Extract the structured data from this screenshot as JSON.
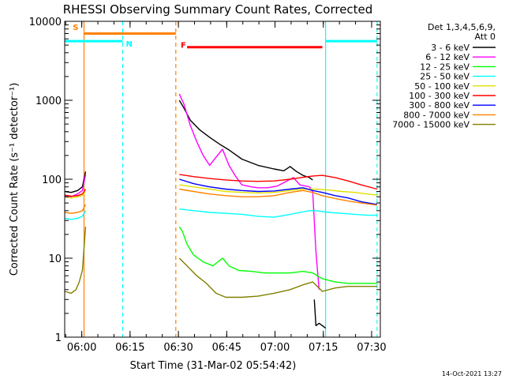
{
  "chart_data": {
    "type": "line",
    "title": "RHESSI Observing Summary Count Rates, Corrected",
    "xlabel": "Start Time (31-Mar-02 05:54:42)",
    "ylabel": "Corrected Count Rate (s⁻¹ detector⁻¹)",
    "x_unit": "minutes since 05:54:42",
    "xlim": [
      0,
      98
    ],
    "ylim": [
      1,
      10000
    ],
    "y_scale": "log",
    "x_ticks": [
      {
        "label": "06:00",
        "value": 5.3
      },
      {
        "label": "06:15",
        "value": 20.3
      },
      {
        "label": "06:30",
        "value": 35.3
      },
      {
        "label": "06:45",
        "value": 50.3
      },
      {
        "label": "07:00",
        "value": 65.3
      },
      {
        "label": "07:15",
        "value": 80.3
      },
      {
        "label": "07:30",
        "value": 95.3
      }
    ],
    "y_ticks": [
      {
        "label": "1",
        "value": 1
      },
      {
        "label": "10",
        "value": 10
      },
      {
        "label": "100",
        "value": 100
      },
      {
        "label": "1000",
        "value": 1000
      },
      {
        "label": "10000",
        "value": 10000
      }
    ],
    "legend_header": [
      "Det 1,3,4,5,6,9,",
      "Att 0"
    ],
    "legend_position": "right",
    "series": [
      {
        "name": "3 - 6 keV",
        "color": "#000000",
        "segments": [
          [
            [
              0,
              70
            ],
            [
              2,
              68
            ],
            [
              4,
              72
            ],
            [
              5.5,
              80
            ],
            [
              6.5,
              125
            ]
          ],
          [
            [
              35.6,
              1000
            ],
            [
              37,
              800
            ],
            [
              39,
              560
            ],
            [
              42,
              420
            ],
            [
              45,
              340
            ],
            [
              48,
              280
            ],
            [
              51,
              235
            ],
            [
              55,
              180
            ],
            [
              60,
              150
            ],
            [
              65,
              135
            ],
            [
              68,
              128
            ],
            [
              70,
              145
            ],
            [
              72,
              125
            ],
            [
              74,
              112
            ],
            [
              76,
              105
            ],
            [
              77,
              98
            ]
          ],
          [
            [
              77.5,
              3
            ],
            [
              78,
              1.4
            ],
            [
              79,
              1.5
            ],
            [
              80,
              1.4
            ],
            [
              81,
              1.3
            ]
          ]
        ]
      },
      {
        "name": "6 - 12 keV",
        "color": "#ff00ff",
        "segments": [
          [
            [
              0,
              62
            ],
            [
              2,
              60
            ],
            [
              4,
              65
            ],
            [
              5.5,
              72
            ],
            [
              6.5,
              115
            ]
          ],
          [
            [
              35.6,
              1200
            ],
            [
              37,
              900
            ],
            [
              39,
              480
            ],
            [
              41,
              300
            ],
            [
              43,
              200
            ],
            [
              45,
              150
            ],
            [
              47,
              190
            ],
            [
              49,
              240
            ],
            [
              51,
              150
            ],
            [
              53,
              110
            ],
            [
              55,
              85
            ],
            [
              58,
              80
            ],
            [
              60,
              78
            ],
            [
              63,
              78
            ],
            [
              66,
              82
            ],
            [
              69,
              95
            ],
            [
              71,
              105
            ],
            [
              73,
              85
            ],
            [
              76,
              80
            ],
            [
              77,
              70
            ],
            [
              78,
              12
            ],
            [
              79,
              4
            ]
          ]
        ]
      },
      {
        "name": "12 - 25 keV",
        "color": "#00ff00",
        "segments": [
          [
            [
              35.6,
              25
            ],
            [
              36.5,
              22
            ],
            [
              38,
              15
            ],
            [
              40,
              11
            ],
            [
              43,
              9
            ],
            [
              46,
              8
            ],
            [
              49,
              10
            ],
            [
              51,
              8
            ],
            [
              54,
              7
            ],
            [
              58,
              6.8
            ],
            [
              62,
              6.5
            ],
            [
              66,
              6.5
            ],
            [
              70,
              6.5
            ],
            [
              74,
              6.8
            ],
            [
              77,
              6.5
            ],
            [
              80,
              5.5
            ],
            [
              84,
              5
            ],
            [
              88,
              4.8
            ],
            [
              92,
              4.8
            ],
            [
              97,
              4.8
            ]
          ]
        ]
      },
      {
        "name": "25 - 50 keV",
        "color": "#00ffff",
        "segments": [
          [
            [
              0,
              32
            ],
            [
              2,
              31
            ],
            [
              4,
              32
            ],
            [
              5.5,
              34
            ],
            [
              6.5,
              40
            ]
          ],
          [
            [
              35.6,
              42
            ],
            [
              40,
              40
            ],
            [
              45,
              38
            ],
            [
              50,
              37
            ],
            [
              55,
              36
            ],
            [
              60,
              34
            ],
            [
              65,
              33
            ],
            [
              70,
              36
            ],
            [
              73,
              38
            ],
            [
              76,
              40
            ],
            [
              78,
              40
            ],
            [
              82,
              38
            ],
            [
              86,
              37
            ],
            [
              90,
              36
            ],
            [
              94,
              35
            ],
            [
              97,
              35
            ]
          ]
        ]
      },
      {
        "name": "50 - 100 keV",
        "color": "#e0e000",
        "segments": [
          [
            [
              0,
              60
            ],
            [
              2,
              58
            ],
            [
              4,
              60
            ],
            [
              5.5,
              62
            ],
            [
              6.5,
              70
            ]
          ],
          [
            [
              35.6,
              85
            ],
            [
              40,
              80
            ],
            [
              45,
              75
            ],
            [
              50,
              70
            ],
            [
              55,
              68
            ],
            [
              60,
              67
            ],
            [
              65,
              68
            ],
            [
              70,
              72
            ],
            [
              74,
              75
            ],
            [
              78,
              75
            ],
            [
              82,
              73
            ],
            [
              86,
              70
            ],
            [
              90,
              68
            ],
            [
              94,
              65
            ],
            [
              97,
              63
            ]
          ]
        ]
      },
      {
        "name": "100 - 300 keV",
        "color": "#ff0000",
        "segments": [
          [
            [
              0,
              63
            ],
            [
              2,
              61
            ],
            [
              4,
              62
            ],
            [
              5.5,
              65
            ],
            [
              6.5,
              75
            ]
          ],
          [
            [
              35.6,
              115
            ],
            [
              40,
              108
            ],
            [
              45,
              102
            ],
            [
              50,
              98
            ],
            [
              55,
              95
            ],
            [
              60,
              94
            ],
            [
              65,
              95
            ],
            [
              70,
              100
            ],
            [
              74,
              106
            ],
            [
              77,
              110
            ],
            [
              80,
              112
            ],
            [
              84,
              105
            ],
            [
              88,
              95
            ],
            [
              92,
              85
            ],
            [
              97,
              75
            ]
          ]
        ]
      },
      {
        "name": "300 - 800 keV",
        "color": "#0000ff",
        "segments": [
          [
            [
              35.6,
              100
            ],
            [
              40,
              88
            ],
            [
              45,
              80
            ],
            [
              50,
              75
            ],
            [
              55,
              72
            ],
            [
              60,
              70
            ],
            [
              65,
              71
            ],
            [
              70,
              75
            ],
            [
              74,
              78
            ],
            [
              77,
              72
            ],
            [
              80,
              68
            ],
            [
              84,
              62
            ],
            [
              88,
              58
            ],
            [
              92,
              52
            ],
            [
              97,
              48
            ]
          ]
        ]
      },
      {
        "name": "800 - 7000 keV",
        "color": "#ff8000",
        "segments": [
          [
            [
              0,
              38
            ],
            [
              2,
              37
            ],
            [
              4,
              38
            ],
            [
              5.5,
              40
            ],
            [
              6.5,
              48
            ]
          ],
          [
            [
              35.6,
              75
            ],
            [
              40,
              70
            ],
            [
              45,
              65
            ],
            [
              50,
              62
            ],
            [
              55,
              60
            ],
            [
              60,
              60
            ],
            [
              65,
              62
            ],
            [
              70,
              68
            ],
            [
              74,
              72
            ],
            [
              77,
              68
            ],
            [
              80,
              62
            ],
            [
              84,
              57
            ],
            [
              88,
              53
            ],
            [
              92,
              50
            ],
            [
              97,
              47
            ]
          ]
        ]
      },
      {
        "name": "7000 - 15000 keV",
        "color": "#808000",
        "segments": [
          [
            [
              0,
              3.8
            ],
            [
              2,
              3.6
            ],
            [
              3.5,
              4
            ],
            [
              4.5,
              5
            ],
            [
              5.5,
              7
            ],
            [
              6.5,
              25
            ]
          ],
          [
            [
              35.6,
              10
            ],
            [
              38,
              8
            ],
            [
              41,
              6
            ],
            [
              44,
              4.8
            ],
            [
              47,
              3.6
            ],
            [
              50,
              3.2
            ],
            [
              55,
              3.2
            ],
            [
              60,
              3.3
            ],
            [
              65,
              3.6
            ],
            [
              70,
              4
            ],
            [
              74,
              4.6
            ],
            [
              77,
              5
            ],
            [
              80,
              3.8
            ],
            [
              84,
              4.2
            ],
            [
              88,
              4.4
            ],
            [
              92,
              4.4
            ],
            [
              97,
              4.4
            ]
          ]
        ]
      }
    ],
    "flag_bars": [
      {
        "label": "S",
        "color": "#ff8000",
        "x_start": 6.0,
        "x_end": 34.5,
        "y": 7000
      },
      {
        "label": "N",
        "color": "#00ffff",
        "x_start": 0,
        "x_end": 18.0,
        "y": 5600
      },
      {
        "label": "N",
        "color": "#00ffff",
        "x_start": 81.0,
        "x_end": 97.0,
        "y": 5600
      },
      {
        "label": "F",
        "color": "#ff0000",
        "x_start": 38.0,
        "x_end": 80.0,
        "y": 4700
      }
    ],
    "flag_labels": [
      {
        "text": "S",
        "color": "#ff8000",
        "x": 2.5,
        "y": 7800
      },
      {
        "text": "N",
        "color": "#00ffff",
        "x": 19.0,
        "y": 4800
      },
      {
        "text": "F",
        "color": "#ff0000",
        "x": 36.0,
        "y": 4600
      }
    ],
    "vlines": [
      {
        "x": 6.0,
        "color": "#ff8000",
        "dashed": false
      },
      {
        "x": 18.0,
        "color": "#00ffff",
        "dashed": true
      },
      {
        "x": 34.5,
        "color": "#ff8000",
        "dashed": true
      },
      {
        "x": 81.0,
        "color": "#00ffff",
        "dashed": false
      },
      {
        "x": 97.0,
        "color": "#00ffff",
        "dashed": true
      }
    ],
    "footer_date": "14-Oct-2021 13:27"
  }
}
